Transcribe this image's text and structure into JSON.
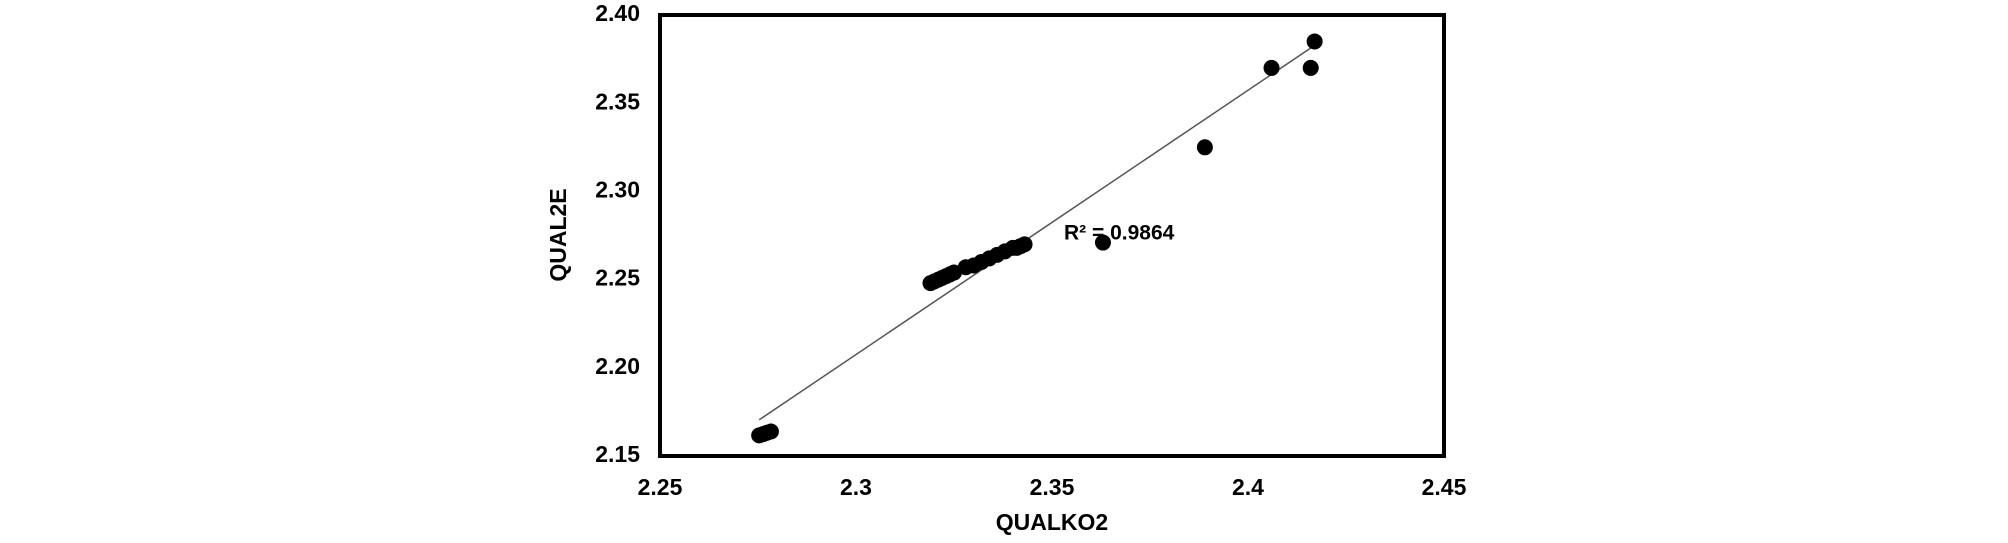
{
  "chart_data": {
    "type": "scatter",
    "x_label": "QUALKO2",
    "y_label": "QUAL2E",
    "annotation": "R² = 0.9864",
    "color": "#000000",
    "trendline_color": "#555555",
    "x": [
      2.2753,
      2.2763,
      2.2773,
      2.2783,
      2.319,
      2.32,
      2.321,
      2.322,
      2.323,
      2.324,
      2.325,
      2.328,
      2.33,
      2.332,
      2.334,
      2.336,
      2.338,
      2.34,
      2.341,
      2.342,
      2.343,
      2.363,
      2.389,
      2.406,
      2.416,
      2.417
    ],
    "y": [
      2.1617,
      2.1624,
      2.1632,
      2.1639,
      2.248,
      2.249,
      2.25,
      2.251,
      2.252,
      2.253,
      2.254,
      2.257,
      2.258,
      2.26,
      2.262,
      2.264,
      2.266,
      2.268,
      2.268,
      2.269,
      2.27,
      2.271,
      2.325,
      2.37,
      2.37,
      2.385
    ],
    "trendline": {
      "x": [
        2.2753,
        2.4168
      ],
      "y": [
        2.1705,
        2.3825
      ]
    },
    "xlim": [
      2.25,
      2.45
    ],
    "xticks": [
      2.25,
      2.3,
      2.35,
      2.4,
      2.45
    ],
    "ylim": [
      2.15,
      2.4
    ],
    "yticks": [
      {
        "value": 2.15,
        "label": "2.15"
      },
      {
        "value": 2.2,
        "label": "2.20"
      },
      {
        "value": 2.25,
        "label": "2.25"
      },
      {
        "value": 2.3,
        "label": "2.30"
      },
      {
        "value": 2.35,
        "label": "2.35"
      },
      {
        "value": 2.4,
        "label": "2.40"
      }
    ]
  }
}
